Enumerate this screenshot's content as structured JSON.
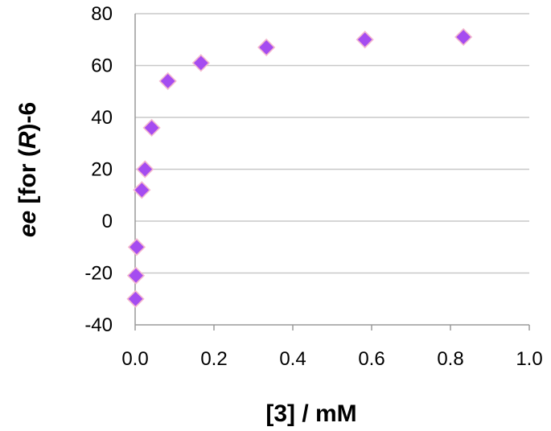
{
  "chart_data": {
    "type": "scatter",
    "xlabel": "[3] / mM",
    "ylabel_parts": [
      "ee",
      " [for (",
      "R",
      ")-6"
    ],
    "xlim": [
      0.0,
      1.0
    ],
    "ylim": [
      -40,
      80
    ],
    "xticks": [
      "0.0",
      "0.2",
      "0.4",
      "0.6",
      "0.8",
      "1.0"
    ],
    "yticks": [
      "80",
      "60",
      "40",
      "20",
      "0",
      "-20",
      "-40"
    ],
    "grid": "horizontal",
    "marker": "diamond",
    "marker_color": "#a54cf0",
    "marker_edge_color": "#f3b8cf",
    "series": [
      {
        "x": [
          0.001,
          0.002,
          0.004,
          0.017,
          0.025,
          0.042,
          0.083,
          0.167,
          0.333,
          0.583,
          0.833
        ],
        "y": [
          -30,
          -21,
          -10,
          12,
          20,
          36,
          54,
          61,
          67,
          70,
          71
        ]
      }
    ]
  }
}
